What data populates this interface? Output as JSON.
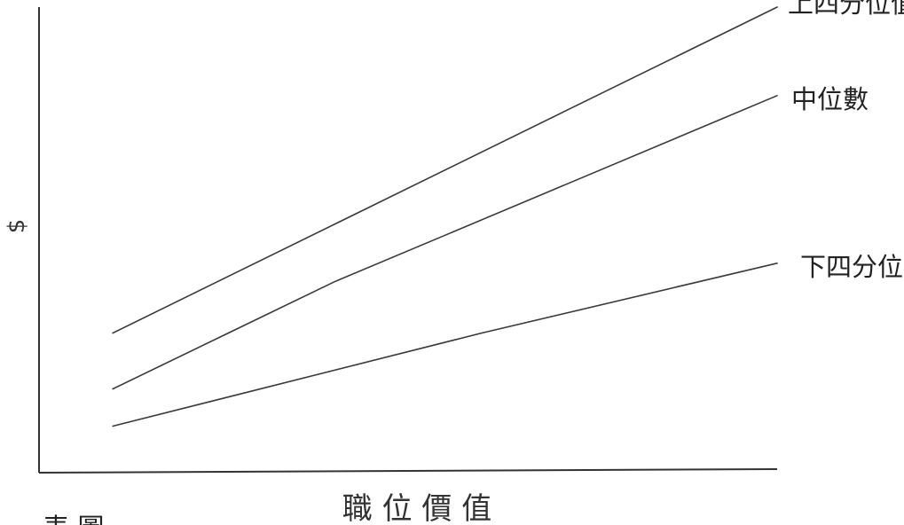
{
  "chart_data": {
    "type": "line",
    "title": "",
    "xlabel": "職 位 價 值",
    "ylabel": "$",
    "grid": false,
    "legend": "direct labels at line ends",
    "xlim": [
      0,
      10
    ],
    "ylim": [
      0,
      10
    ],
    "series": [
      {
        "name": "上四分位值",
        "x": [
          1,
          10
        ],
        "y": [
          3.0,
          10.0
        ],
        "color": "#3a3a3a"
      },
      {
        "name": "中位數",
        "x": [
          1,
          4,
          10
        ],
        "y": [
          1.8,
          4.1,
          8.1
        ],
        "color": "#3a3a3a"
      },
      {
        "name": "下四分位值",
        "x": [
          1,
          4,
          6,
          10
        ],
        "y": [
          1.0,
          2.2,
          3.0,
          4.5
        ],
        "color": "#3a3a3a"
      }
    ]
  },
  "footer_partial_text": "表 圖"
}
